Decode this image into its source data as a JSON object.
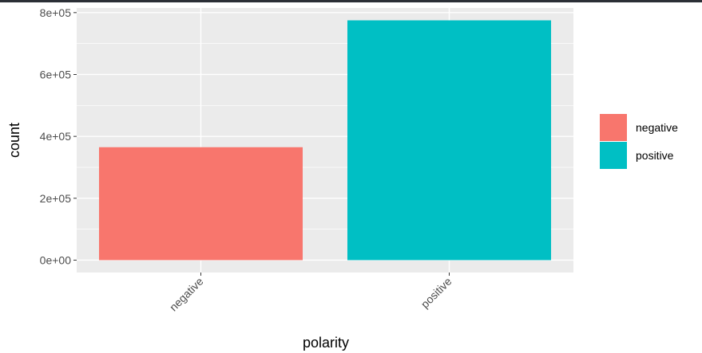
{
  "chart_data": {
    "type": "bar",
    "categories": [
      "negative",
      "positive"
    ],
    "values": [
      365000,
      775000
    ],
    "xlabel": "polarity",
    "ylabel": "count",
    "ylim": [
      -40000,
      815000
    ],
    "y_ticks": [
      0,
      200000,
      400000,
      600000,
      800000
    ],
    "y_tick_labels": [
      "0e+00",
      "2e+05",
      "4e+05",
      "6e+05",
      "8e+05"
    ],
    "grid": true,
    "legend_placement": "right",
    "legend": [
      {
        "label": "negative",
        "color": "#F8766D"
      },
      {
        "label": "positive",
        "color": "#00BFC4"
      }
    ],
    "colors": {
      "panel_background": "#EBEBEB",
      "grid": "#FFFFFF"
    }
  }
}
